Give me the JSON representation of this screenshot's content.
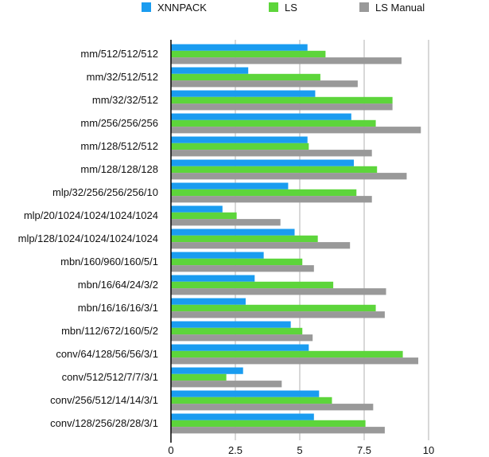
{
  "chart_data": {
    "type": "bar",
    "orientation": "horizontal",
    "categories": [
      "mm/512/512/512",
      "mm/32/512/512",
      "mm/32/32/512",
      "mm/256/256/256",
      "mm/128/512/512",
      "mm/128/128/128",
      "mlp/32/256/256/256/10",
      "mlp/20/1024/1024/1024/1024",
      "mlp/128/1024/1024/1024/1024",
      "mbn/160/960/160/5/1",
      "mbn/16/64/24/3/2",
      "mbn/16/16/16/3/1",
      "mbn/112/672/160/5/2",
      "conv/64/128/56/56/3/1",
      "conv/512/512/7/7/3/1",
      "conv/256/512/14/14/3/1",
      "conv/128/256/28/28/3/1"
    ],
    "series": [
      {
        "name": "XNNPACK",
        "color": "#1a9cf0",
        "values": [
          5.3,
          3.0,
          5.6,
          7.0,
          5.3,
          7.1,
          4.55,
          2.0,
          4.8,
          3.6,
          3.25,
          2.9,
          4.65,
          5.35,
          2.8,
          5.75,
          5.55
        ]
      },
      {
        "name": "LS",
        "color": "#5dd53b",
        "values": [
          6.0,
          5.8,
          8.6,
          7.95,
          5.35,
          8.0,
          7.2,
          2.55,
          5.7,
          5.1,
          6.3,
          7.95,
          5.1,
          9.0,
          2.15,
          6.25,
          7.55
        ]
      },
      {
        "name": "LS Manual",
        "color": "#999999",
        "values": [
          8.95,
          7.25,
          8.6,
          9.7,
          7.8,
          9.15,
          7.8,
          4.25,
          6.95,
          5.55,
          8.35,
          8.3,
          5.5,
          9.6,
          4.3,
          7.85,
          8.3
        ]
      }
    ],
    "xlim": [
      0,
      10
    ],
    "xticks": [
      "0",
      "2.5",
      "5",
      "7.5",
      "10"
    ],
    "grid": true,
    "legend_position": "top",
    "title": "",
    "xlabel": "",
    "ylabel": ""
  }
}
